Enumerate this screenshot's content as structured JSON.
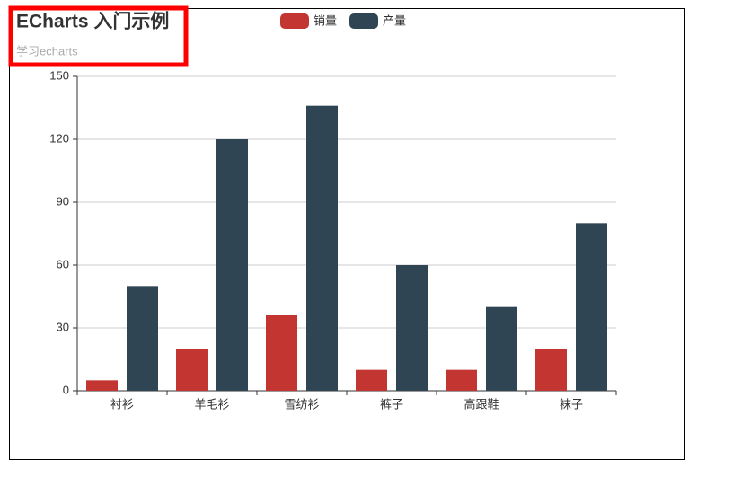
{
  "chart_data": {
    "type": "bar",
    "title": "ECharts 入门示例",
    "subtitle": "学习echarts",
    "categories": [
      "衬衫",
      "羊毛衫",
      "雪纺衫",
      "裤子",
      "高跟鞋",
      "袜子"
    ],
    "series": [
      {
        "name": "销量",
        "color": "#c23531",
        "values": [
          5,
          20,
          36,
          10,
          10,
          20
        ]
      },
      {
        "name": "产量",
        "color": "#2f4554",
        "values": [
          50,
          120,
          136,
          60,
          40,
          80
        ]
      }
    ],
    "ylim": [
      0,
      150
    ],
    "yticks": [
      0,
      30,
      60,
      90,
      120,
      150
    ],
    "grid": true,
    "legend": "top"
  }
}
